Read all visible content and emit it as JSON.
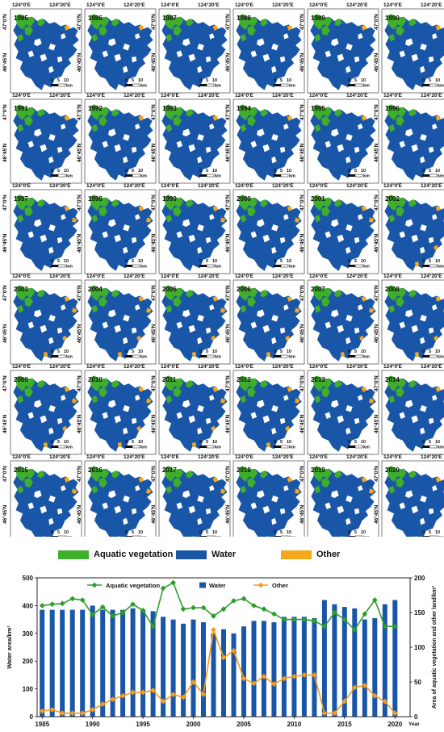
{
  "map_panels": {
    "years": [
      "1985",
      "1986",
      "1987",
      "1988",
      "1989",
      "1990",
      "1991",
      "1992",
      "1993",
      "1994",
      "1995",
      "1996",
      "1997",
      "1998",
      "1999",
      "2000",
      "2001",
      "2002",
      "2003",
      "2004",
      "2005",
      "2006",
      "2007",
      "2008",
      "2009",
      "2010",
      "2011",
      "2012",
      "2013",
      "2014",
      "2015",
      "2016",
      "2017",
      "2018",
      "2019",
      "2020"
    ],
    "top_ticks": [
      "124°0'E",
      "124°20'E"
    ],
    "left_ticks": [
      "47°0'N",
      "46°45'N"
    ],
    "right_ticks": [
      "46°45'N",
      "46°30'N"
    ],
    "bottom_ticks": [
      "124°0'E",
      "124°20'E"
    ],
    "bottom_row_ticks": [
      "124°0'E"
    ],
    "scale_labels": [
      "0",
      "5",
      "10"
    ],
    "scale_unit": "km",
    "colors": {
      "water": "#1a56a8",
      "vegetation": "#3fae2a",
      "other": "#f5a81c"
    }
  },
  "map_legend": {
    "items": [
      {
        "label": "Aquatic vegetation",
        "color": "#3fae2a"
      },
      {
        "label": "Water",
        "color": "#1a56a8"
      },
      {
        "label": "Other",
        "color": "#f5a81c"
      }
    ]
  },
  "chart_data": {
    "type": "bar",
    "x": [
      1985,
      1986,
      1987,
      1988,
      1989,
      1990,
      1991,
      1992,
      1993,
      1994,
      1995,
      1996,
      1997,
      1998,
      1999,
      2000,
      2001,
      2002,
      2003,
      2004,
      2005,
      2006,
      2007,
      2008,
      2009,
      2010,
      2011,
      2012,
      2013,
      2014,
      2015,
      2016,
      2017,
      2018,
      2019,
      2020
    ],
    "xticks": [
      1985,
      1990,
      1995,
      2000,
      2005,
      2010,
      2015,
      2020
    ],
    "xlabel": "Year",
    "ylabel": "Water area/km²",
    "ylabel_right": "Area of aquatic vegetation and other land/km²",
    "ylim": [
      0,
      500
    ],
    "yticks": [
      0,
      100,
      200,
      300,
      400,
      500
    ],
    "ylim_right": [
      0,
      200
    ],
    "yticks_right": [
      0,
      50,
      100,
      150,
      200
    ],
    "legend_position": "top",
    "series": [
      {
        "name": "Water",
        "type": "bar",
        "axis": "left",
        "color": "#1a56a8",
        "values": [
          385,
          385,
          385,
          385,
          385,
          400,
          385,
          385,
          385,
          390,
          385,
          380,
          360,
          350,
          335,
          350,
          340,
          300,
          315,
          300,
          325,
          345,
          345,
          340,
          360,
          360,
          360,
          355,
          420,
          405,
          395,
          390,
          350,
          355,
          405,
          420
        ]
      },
      {
        "name": "Aquatic vegetation",
        "type": "line",
        "axis": "right",
        "color": "#2e9e2a",
        "values": [
          160,
          162,
          163,
          170,
          168,
          147,
          158,
          145,
          150,
          162,
          153,
          130,
          185,
          193,
          155,
          157,
          157,
          145,
          155,
          167,
          170,
          160,
          155,
          148,
          140,
          140,
          140,
          138,
          130,
          150,
          140,
          125,
          148,
          168,
          130,
          130
        ]
      },
      {
        "name": "Other",
        "type": "line",
        "axis": "right",
        "color": "#f59b1c",
        "values": [
          8,
          10,
          5,
          5,
          5,
          10,
          18,
          25,
          30,
          35,
          35,
          38,
          22,
          32,
          28,
          50,
          32,
          125,
          85,
          95,
          55,
          48,
          58,
          47,
          55,
          58,
          60,
          60,
          5,
          5,
          22,
          42,
          45,
          30,
          22,
          5
        ]
      }
    ]
  }
}
